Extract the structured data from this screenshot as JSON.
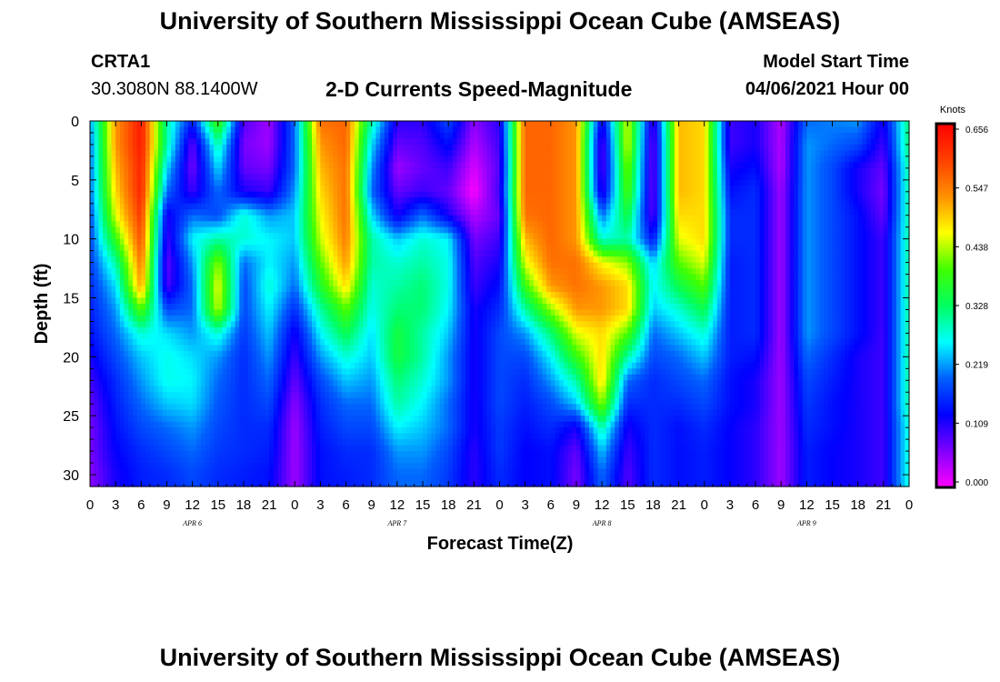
{
  "header": {
    "title": "University of Southern Mississippi Ocean Cube (AMSEAS)",
    "station_id": "CRTA1",
    "coords": "30.3080N  88.1400W",
    "product": "2-D Currents Speed-Magnitude",
    "model_start_label": "Model Start Time",
    "model_start_value": "04/06/2021 Hour 00"
  },
  "footer": {
    "title": "University of Southern Mississippi Ocean Cube (AMSEAS)"
  },
  "chart_data": {
    "type": "heatmap",
    "xlabel": "Forecast Time(Z)",
    "ylabel": "Depth (ft)",
    "x_unit": "hours since model start",
    "xlim": [
      0,
      96
    ],
    "x_tick_labels": [
      "0",
      "3",
      "6",
      "9",
      "12",
      "15",
      "18",
      "21",
      "0",
      "3",
      "6",
      "9",
      "12",
      "15",
      "18",
      "21",
      "0",
      "3",
      "6",
      "9",
      "12",
      "15",
      "18",
      "21",
      "0",
      "3",
      "6",
      "9",
      "12",
      "15",
      "18",
      "21",
      "0"
    ],
    "day_labels": [
      "APR 6",
      "APR 7",
      "APR 8",
      "APR 9"
    ],
    "y_ticks": [
      0,
      5,
      10,
      15,
      20,
      25,
      30
    ],
    "ylim": [
      0,
      31
    ],
    "y_inverted": true,
    "colorbar": {
      "unit": "Knots",
      "ticks": [
        "0.656",
        "0.547",
        "0.438",
        "0.328",
        "0.219",
        "0.109",
        "0.000"
      ],
      "range": [
        0,
        0.656
      ],
      "colors": [
        "#ff00ff",
        "#8000ff",
        "#0000ff",
        "#0060ff",
        "#00ffff",
        "#00ff60",
        "#40ff00",
        "#ffff00",
        "#ff9000",
        "#ff4000",
        "#ff0000"
      ]
    },
    "depths_ft": [
      0,
      2,
      4,
      6,
      8,
      10,
      12,
      14,
      16,
      18,
      20,
      22,
      24,
      26,
      28,
      30,
      31
    ],
    "times_h": [
      0,
      3,
      6,
      9,
      12,
      15,
      18,
      21,
      24,
      27,
      30,
      33,
      36,
      39,
      42,
      45,
      48,
      51,
      54,
      57,
      60,
      63,
      66,
      69,
      72,
      75,
      78,
      81,
      84,
      87,
      90,
      93,
      96
    ],
    "speed_knots": [
      [
        0.22,
        0.52,
        0.63,
        0.3,
        0.15,
        0.4,
        0.09,
        0.05,
        0.2,
        0.55,
        0.56,
        0.3,
        0.11,
        0.11,
        0.18,
        0.06,
        0.11,
        0.56,
        0.56,
        0.52,
        0.12,
        0.45,
        0.09,
        0.5,
        0.48,
        0.1,
        0.12,
        0.04,
        0.2,
        0.21,
        0.22,
        0.12,
        0.32
      ],
      [
        0.2,
        0.52,
        0.63,
        0.3,
        0.08,
        0.3,
        0.07,
        0.05,
        0.2,
        0.52,
        0.56,
        0.25,
        0.08,
        0.09,
        0.14,
        0.04,
        0.1,
        0.56,
        0.56,
        0.52,
        0.08,
        0.45,
        0.07,
        0.5,
        0.48,
        0.1,
        0.12,
        0.04,
        0.22,
        0.2,
        0.18,
        0.1,
        0.32
      ],
      [
        0.2,
        0.5,
        0.62,
        0.25,
        0.07,
        0.25,
        0.08,
        0.07,
        0.2,
        0.5,
        0.55,
        0.22,
        0.05,
        0.08,
        0.1,
        0.02,
        0.09,
        0.56,
        0.56,
        0.52,
        0.08,
        0.42,
        0.07,
        0.5,
        0.48,
        0.12,
        0.14,
        0.04,
        0.22,
        0.18,
        0.12,
        0.08,
        0.3
      ],
      [
        0.2,
        0.48,
        0.62,
        0.2,
        0.1,
        0.2,
        0.12,
        0.1,
        0.22,
        0.48,
        0.55,
        0.2,
        0.08,
        0.1,
        0.08,
        0.0,
        0.1,
        0.56,
        0.56,
        0.52,
        0.1,
        0.4,
        0.07,
        0.5,
        0.48,
        0.14,
        0.16,
        0.05,
        0.22,
        0.18,
        0.12,
        0.07,
        0.3
      ],
      [
        0.18,
        0.45,
        0.6,
        0.12,
        0.2,
        0.18,
        0.28,
        0.22,
        0.24,
        0.46,
        0.55,
        0.25,
        0.12,
        0.2,
        0.12,
        0.04,
        0.08,
        0.55,
        0.56,
        0.52,
        0.2,
        0.35,
        0.08,
        0.48,
        0.48,
        0.16,
        0.16,
        0.05,
        0.22,
        0.18,
        0.14,
        0.08,
        0.3
      ],
      [
        0.18,
        0.38,
        0.58,
        0.1,
        0.26,
        0.3,
        0.28,
        0.26,
        0.24,
        0.44,
        0.54,
        0.3,
        0.24,
        0.28,
        0.26,
        0.07,
        0.1,
        0.5,
        0.56,
        0.52,
        0.28,
        0.3,
        0.14,
        0.45,
        0.48,
        0.16,
        0.16,
        0.05,
        0.22,
        0.18,
        0.14,
        0.1,
        0.3
      ],
      [
        0.17,
        0.3,
        0.55,
        0.08,
        0.22,
        0.42,
        0.2,
        0.26,
        0.22,
        0.4,
        0.52,
        0.3,
        0.28,
        0.3,
        0.27,
        0.09,
        0.12,
        0.45,
        0.55,
        0.55,
        0.46,
        0.42,
        0.24,
        0.4,
        0.45,
        0.15,
        0.16,
        0.05,
        0.22,
        0.18,
        0.14,
        0.1,
        0.3
      ],
      [
        0.16,
        0.25,
        0.52,
        0.09,
        0.2,
        0.46,
        0.18,
        0.28,
        0.2,
        0.36,
        0.48,
        0.28,
        0.3,
        0.32,
        0.27,
        0.1,
        0.14,
        0.38,
        0.52,
        0.55,
        0.52,
        0.48,
        0.26,
        0.34,
        0.4,
        0.15,
        0.16,
        0.05,
        0.22,
        0.18,
        0.14,
        0.1,
        0.3
      ],
      [
        0.15,
        0.22,
        0.4,
        0.18,
        0.2,
        0.44,
        0.18,
        0.26,
        0.16,
        0.3,
        0.4,
        0.27,
        0.32,
        0.32,
        0.26,
        0.12,
        0.16,
        0.3,
        0.42,
        0.52,
        0.52,
        0.48,
        0.24,
        0.28,
        0.34,
        0.15,
        0.16,
        0.05,
        0.22,
        0.18,
        0.14,
        0.1,
        0.3
      ],
      [
        0.14,
        0.2,
        0.28,
        0.25,
        0.22,
        0.28,
        0.17,
        0.24,
        0.12,
        0.26,
        0.34,
        0.25,
        0.35,
        0.3,
        0.24,
        0.12,
        0.18,
        0.22,
        0.32,
        0.45,
        0.48,
        0.4,
        0.2,
        0.24,
        0.28,
        0.15,
        0.16,
        0.05,
        0.22,
        0.18,
        0.14,
        0.1,
        0.3
      ],
      [
        0.12,
        0.18,
        0.24,
        0.27,
        0.25,
        0.22,
        0.16,
        0.22,
        0.1,
        0.22,
        0.28,
        0.24,
        0.35,
        0.3,
        0.22,
        0.12,
        0.18,
        0.18,
        0.26,
        0.38,
        0.48,
        0.3,
        0.18,
        0.2,
        0.24,
        0.15,
        0.14,
        0.05,
        0.2,
        0.16,
        0.12,
        0.1,
        0.3
      ],
      [
        0.1,
        0.16,
        0.22,
        0.27,
        0.26,
        0.2,
        0.16,
        0.2,
        0.08,
        0.18,
        0.24,
        0.22,
        0.32,
        0.28,
        0.22,
        0.12,
        0.18,
        0.16,
        0.22,
        0.3,
        0.48,
        0.2,
        0.16,
        0.18,
        0.2,
        0.14,
        0.12,
        0.05,
        0.18,
        0.15,
        0.12,
        0.1,
        0.3
      ],
      [
        0.08,
        0.15,
        0.2,
        0.24,
        0.25,
        0.19,
        0.16,
        0.18,
        0.06,
        0.16,
        0.2,
        0.2,
        0.3,
        0.26,
        0.2,
        0.12,
        0.18,
        0.15,
        0.18,
        0.24,
        0.42,
        0.16,
        0.16,
        0.16,
        0.18,
        0.14,
        0.12,
        0.05,
        0.17,
        0.14,
        0.12,
        0.1,
        0.3
      ],
      [
        0.07,
        0.14,
        0.18,
        0.2,
        0.22,
        0.18,
        0.16,
        0.16,
        0.05,
        0.15,
        0.18,
        0.18,
        0.26,
        0.24,
        0.2,
        0.12,
        0.17,
        0.14,
        0.16,
        0.12,
        0.3,
        0.12,
        0.16,
        0.14,
        0.16,
        0.13,
        0.11,
        0.05,
        0.16,
        0.14,
        0.12,
        0.1,
        0.28
      ],
      [
        0.07,
        0.13,
        0.16,
        0.18,
        0.2,
        0.17,
        0.16,
        0.15,
        0.05,
        0.14,
        0.16,
        0.16,
        0.22,
        0.22,
        0.18,
        0.11,
        0.17,
        0.13,
        0.14,
        0.08,
        0.24,
        0.1,
        0.16,
        0.14,
        0.15,
        0.13,
        0.11,
        0.05,
        0.15,
        0.13,
        0.12,
        0.1,
        0.28
      ],
      [
        0.06,
        0.12,
        0.15,
        0.16,
        0.18,
        0.16,
        0.15,
        0.14,
        0.05,
        0.14,
        0.15,
        0.16,
        0.2,
        0.2,
        0.17,
        0.11,
        0.16,
        0.13,
        0.14,
        0.07,
        0.2,
        0.09,
        0.16,
        0.14,
        0.15,
        0.13,
        0.11,
        0.05,
        0.15,
        0.13,
        0.12,
        0.1,
        0.28
      ],
      [
        0.06,
        0.12,
        0.15,
        0.16,
        0.18,
        0.16,
        0.15,
        0.14,
        0.05,
        0.14,
        0.15,
        0.16,
        0.2,
        0.2,
        0.17,
        0.11,
        0.16,
        0.13,
        0.14,
        0.07,
        0.2,
        0.09,
        0.16,
        0.14,
        0.15,
        0.13,
        0.11,
        0.05,
        0.15,
        0.13,
        0.12,
        0.1,
        0.28
      ]
    ]
  }
}
